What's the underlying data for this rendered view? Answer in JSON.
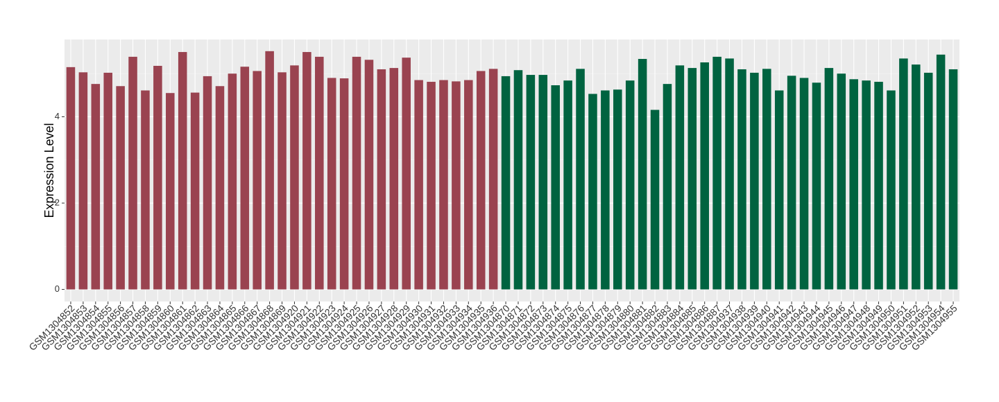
{
  "chart_data": {
    "type": "bar",
    "y_label": "Expression Level",
    "categories": [
      "GSM1304852",
      "GSM1304853",
      "GSM1304854",
      "GSM1304855",
      "GSM1304856",
      "GSM1304857",
      "GSM1304858",
      "GSM1304859",
      "GSM1304860",
      "GSM1304861",
      "GSM1304862",
      "GSM1304863",
      "GSM1304864",
      "GSM1304865",
      "GSM1304866",
      "GSM1304867",
      "GSM1304868",
      "GSM1304869",
      "GSM1304920",
      "GSM1304921",
      "GSM1304922",
      "GSM1304923",
      "GSM1304924",
      "GSM1304925",
      "GSM1304926",
      "GSM1304927",
      "GSM1304928",
      "GSM1304929",
      "GSM1304930",
      "GSM1304931",
      "GSM1304932",
      "GSM1304933",
      "GSM1304934",
      "GSM1304935",
      "GSM1304936",
      "GSM1304870",
      "GSM1304871",
      "GSM1304872",
      "GSM1304873",
      "GSM1304874",
      "GSM1304875",
      "GSM1304876",
      "GSM1304877",
      "GSM1304878",
      "GSM1304879",
      "GSM1304880",
      "GSM1304881",
      "GSM1304882",
      "GSM1304883",
      "GSM1304884",
      "GSM1304885",
      "GSM1304886",
      "GSM1304887",
      "GSM1304937",
      "GSM1304938",
      "GSM1304939",
      "GSM1304940",
      "GSM1304941",
      "GSM1304942",
      "GSM1304943",
      "GSM1304944",
      "GSM1304945",
      "GSM1304946",
      "GSM1304947",
      "GSM1304948",
      "GSM1304949",
      "GSM1304950",
      "GSM1304951",
      "GSM1304952",
      "GSM1304953",
      "GSM1304954",
      "GSM1304955"
    ],
    "values": [
      5.15,
      5.03,
      4.76,
      5.02,
      4.71,
      5.39,
      4.61,
      5.18,
      4.55,
      5.5,
      4.56,
      4.94,
      4.71,
      5.0,
      5.16,
      5.06,
      5.52,
      5.03,
      5.19,
      5.5,
      5.39,
      4.9,
      4.89,
      5.39,
      5.32,
      5.1,
      5.13,
      5.37,
      4.85,
      4.81,
      4.85,
      4.82,
      4.85,
      5.06,
      5.11,
      4.94,
      5.08,
      4.97,
      4.97,
      4.73,
      4.84,
      5.11,
      4.53,
      4.61,
      4.63,
      4.84,
      5.34,
      4.16,
      4.76,
      5.19,
      5.13,
      5.26,
      5.39,
      5.35,
      5.1,
      5.02,
      5.11,
      4.61,
      4.95,
      4.9,
      4.79,
      5.13,
      5.0,
      4.87,
      4.84,
      4.81,
      4.61,
      5.35,
      5.21,
      5.02,
      5.44,
      5.1
    ],
    "colors": [
      "#9a4350",
      "#9a4350",
      "#9a4350",
      "#9a4350",
      "#9a4350",
      "#9a4350",
      "#9a4350",
      "#9a4350",
      "#9a4350",
      "#9a4350",
      "#9a4350",
      "#9a4350",
      "#9a4350",
      "#9a4350",
      "#9a4350",
      "#9a4350",
      "#9a4350",
      "#9a4350",
      "#9a4350",
      "#9a4350",
      "#9a4350",
      "#9a4350",
      "#9a4350",
      "#9a4350",
      "#9a4350",
      "#9a4350",
      "#9a4350",
      "#9a4350",
      "#9a4350",
      "#9a4350",
      "#9a4350",
      "#9a4350",
      "#9a4350",
      "#9a4350",
      "#9a4350",
      "#006340",
      "#006340",
      "#006340",
      "#006340",
      "#006340",
      "#006340",
      "#006340",
      "#006340",
      "#006340",
      "#006340",
      "#006340",
      "#006340",
      "#006340",
      "#006340",
      "#006340",
      "#006340",
      "#006340",
      "#006340",
      "#006340",
      "#006340",
      "#006340",
      "#006340",
      "#006340",
      "#006340",
      "#006340",
      "#006340",
      "#006340",
      "#006340",
      "#006340",
      "#006340",
      "#006340",
      "#006340",
      "#006340",
      "#006340",
      "#006340",
      "#006340",
      "#006340"
    ],
    "ylim": [
      -0.28,
      5.79
    ],
    "yticks": [
      0,
      2,
      4
    ],
    "grid": true
  }
}
